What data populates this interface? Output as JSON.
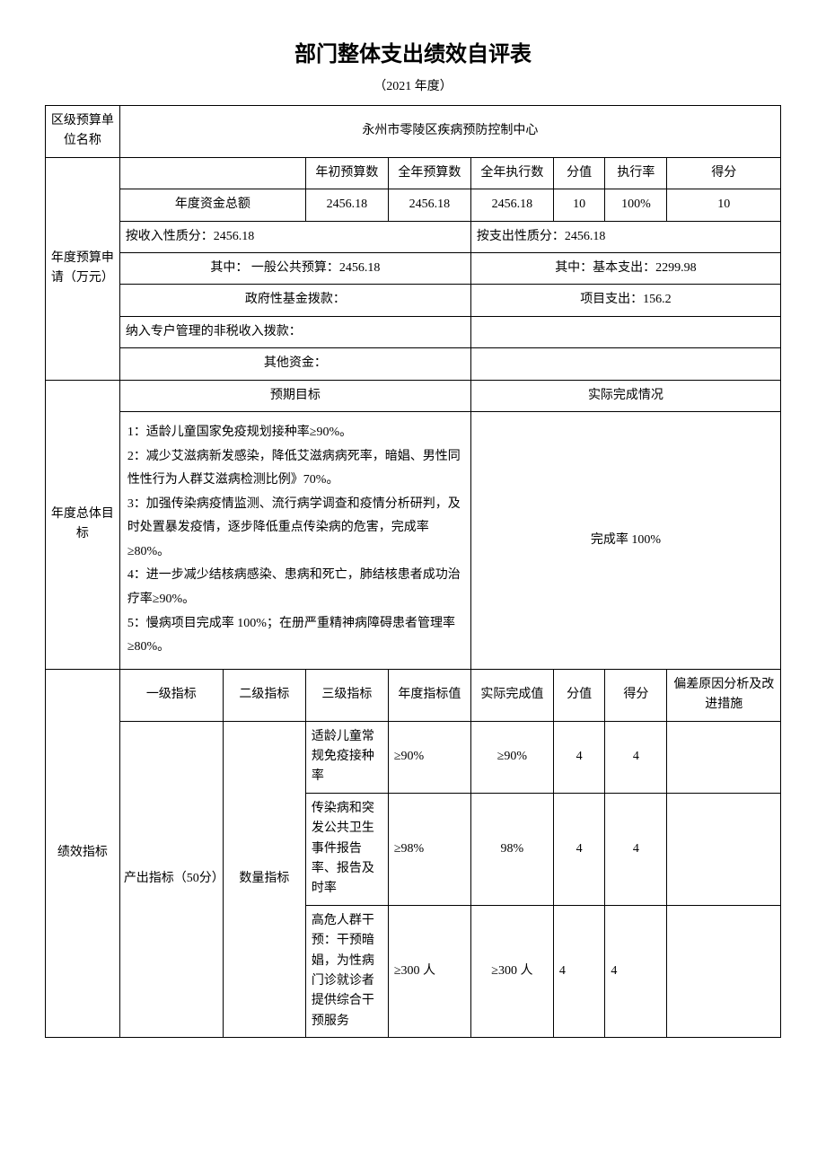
{
  "title": "部门整体支出绩效自评表",
  "subtitle": "（2021 年度）",
  "unit_label": "区级预算单位名称",
  "unit_name": "永州市零陵区疾病预防控制中心",
  "budget_section_label": "年度预算申请（万元）",
  "budget_headers": {
    "initial": "年初预算数",
    "annual_budget": "全年预算数",
    "annual_exec": "全年执行数",
    "score_weight": "分值",
    "exec_rate": "执行率",
    "score": "得分"
  },
  "fund_total_label": "年度资金总额",
  "fund_total": {
    "initial": "2456.18",
    "annual_budget": "2456.18",
    "annual_exec": "2456.18",
    "score_weight": "10",
    "exec_rate": "100%",
    "score": "10"
  },
  "by_income_label": "按收入性质分：2456.18",
  "by_expense_label": "按支出性质分：2456.18",
  "income_general_label": "其中：  一般公共预算：2456.18",
  "expense_basic_label": "其中：基本支出：2299.98",
  "gov_fund_label": "政府性基金拨款：",
  "project_expense_label": "项目支出：156.2",
  "special_account_label": "纳入专户管理的非税收入拨款：",
  "other_fund_label": "其他资金：",
  "overall_goal_label": "年度总体目标",
  "expected_goal_header": "预期目标",
  "actual_complete_header": "实际完成情况",
  "goals_text": "1：适龄儿童国家免疫规划接种率≥90%。\n2：减少艾滋病新发感染，降低艾滋病病死率，暗娼、男性同性性行为人群艾滋病检测比例》70%。\n3：加强传染病疫情监测、流行病学调查和疫情分析研判，及时处置暴发疫情，逐步降低重点传染病的危害，完成率≥80%。\n4：进一步减少结核病感染、患病和死亡，肺结核患者成功治疗率≥90%。\n5：慢病项目完成率 100%；在册严重精神病障碍患者管理率≥80%。",
  "actual_complete_text": "完成率 100%",
  "perf_indicator_label": "绩效指标",
  "indicator_headers": {
    "level1": "一级指标",
    "level2": "二级指标",
    "level3": "三级指标",
    "annual_target": "年度指标值",
    "actual_value": "实际完成值",
    "weight": "分值",
    "score": "得分",
    "deviation": "偏差原因分析及改进措施"
  },
  "level1_output": "产出指标（50分）",
  "level2_qty": "数量指标",
  "indicators": [
    {
      "level3": "适龄儿童常规免疫接种率",
      "target": "≥90%",
      "actual": "≥90%",
      "weight": "4",
      "score": "4",
      "deviation": ""
    },
    {
      "level3": "传染病和突发公共卫生事件报告率、报告及时率",
      "target": "≥98%",
      "actual": "98%",
      "weight": "4",
      "score": "4",
      "deviation": ""
    },
    {
      "level3": "高危人群干预：干预暗娼，为性病门诊就诊者提供综合干预服务",
      "target": "≥300 人",
      "actual": "≥300 人",
      "weight": "4",
      "score": "4",
      "deviation": ""
    }
  ]
}
